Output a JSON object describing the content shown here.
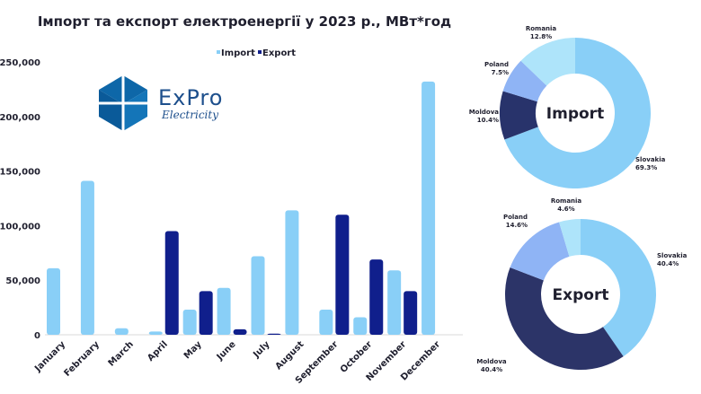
{
  "chart_data": [
    {
      "type": "bar",
      "title": "Імпорт та експорт електроенергії у 2023 р., МВт*год",
      "categories": [
        "January",
        "February",
        "March",
        "April",
        "May",
        "June",
        "July",
        "August",
        "September",
        "October",
        "November",
        "December"
      ],
      "series": [
        {
          "name": "Import",
          "values": [
            61000,
            141000,
            6000,
            3000,
            23000,
            43000,
            72000,
            114000,
            23000,
            16000,
            59000,
            232000
          ]
        },
        {
          "name": "Export",
          "values": [
            0,
            0,
            0,
            95000,
            40000,
            5000,
            1000,
            0,
            110000,
            69000,
            40000,
            0
          ]
        }
      ],
      "yticks": [
        "0",
        "50,000",
        "100,000",
        "150,000",
        "200,000",
        "250,000"
      ],
      "ylim": [
        0,
        250000
      ],
      "legend": "top-center",
      "grid": false,
      "colors": {
        "Import": "#89cff7",
        "Export": "#101f8c"
      }
    },
    {
      "type": "pie",
      "title": "Import",
      "slices": [
        {
          "label": "Slovakia",
          "value": 69.3,
          "text": "69.3%",
          "color": "#89cff7"
        },
        {
          "label": "Moldova",
          "value": 10.4,
          "text": "10.4%",
          "color": "#28336b"
        },
        {
          "label": "Poland",
          "value": 7.5,
          "text": "7.5%",
          "color": "#8fb4f5"
        },
        {
          "label": "Romania",
          "value": 12.8,
          "text": "12.8%",
          "color": "#aee4fa"
        }
      ]
    },
    {
      "type": "pie",
      "title": "Export",
      "slices": [
        {
          "label": "Slovakia",
          "value": 40.4,
          "text": "40.4%",
          "color": "#89cff7"
        },
        {
          "label": "Moldova",
          "value": 40.4,
          "text": "40.4%",
          "color": "#2c3468"
        },
        {
          "label": "Poland",
          "value": 14.6,
          "text": "14.6%",
          "color": "#8fb4f5"
        },
        {
          "label": "Romania",
          "value": 4.6,
          "text": "4.6%",
          "color": "#aee4fa"
        }
      ]
    }
  ],
  "logo": {
    "word": "ExPro",
    "sub": "Electricity"
  }
}
